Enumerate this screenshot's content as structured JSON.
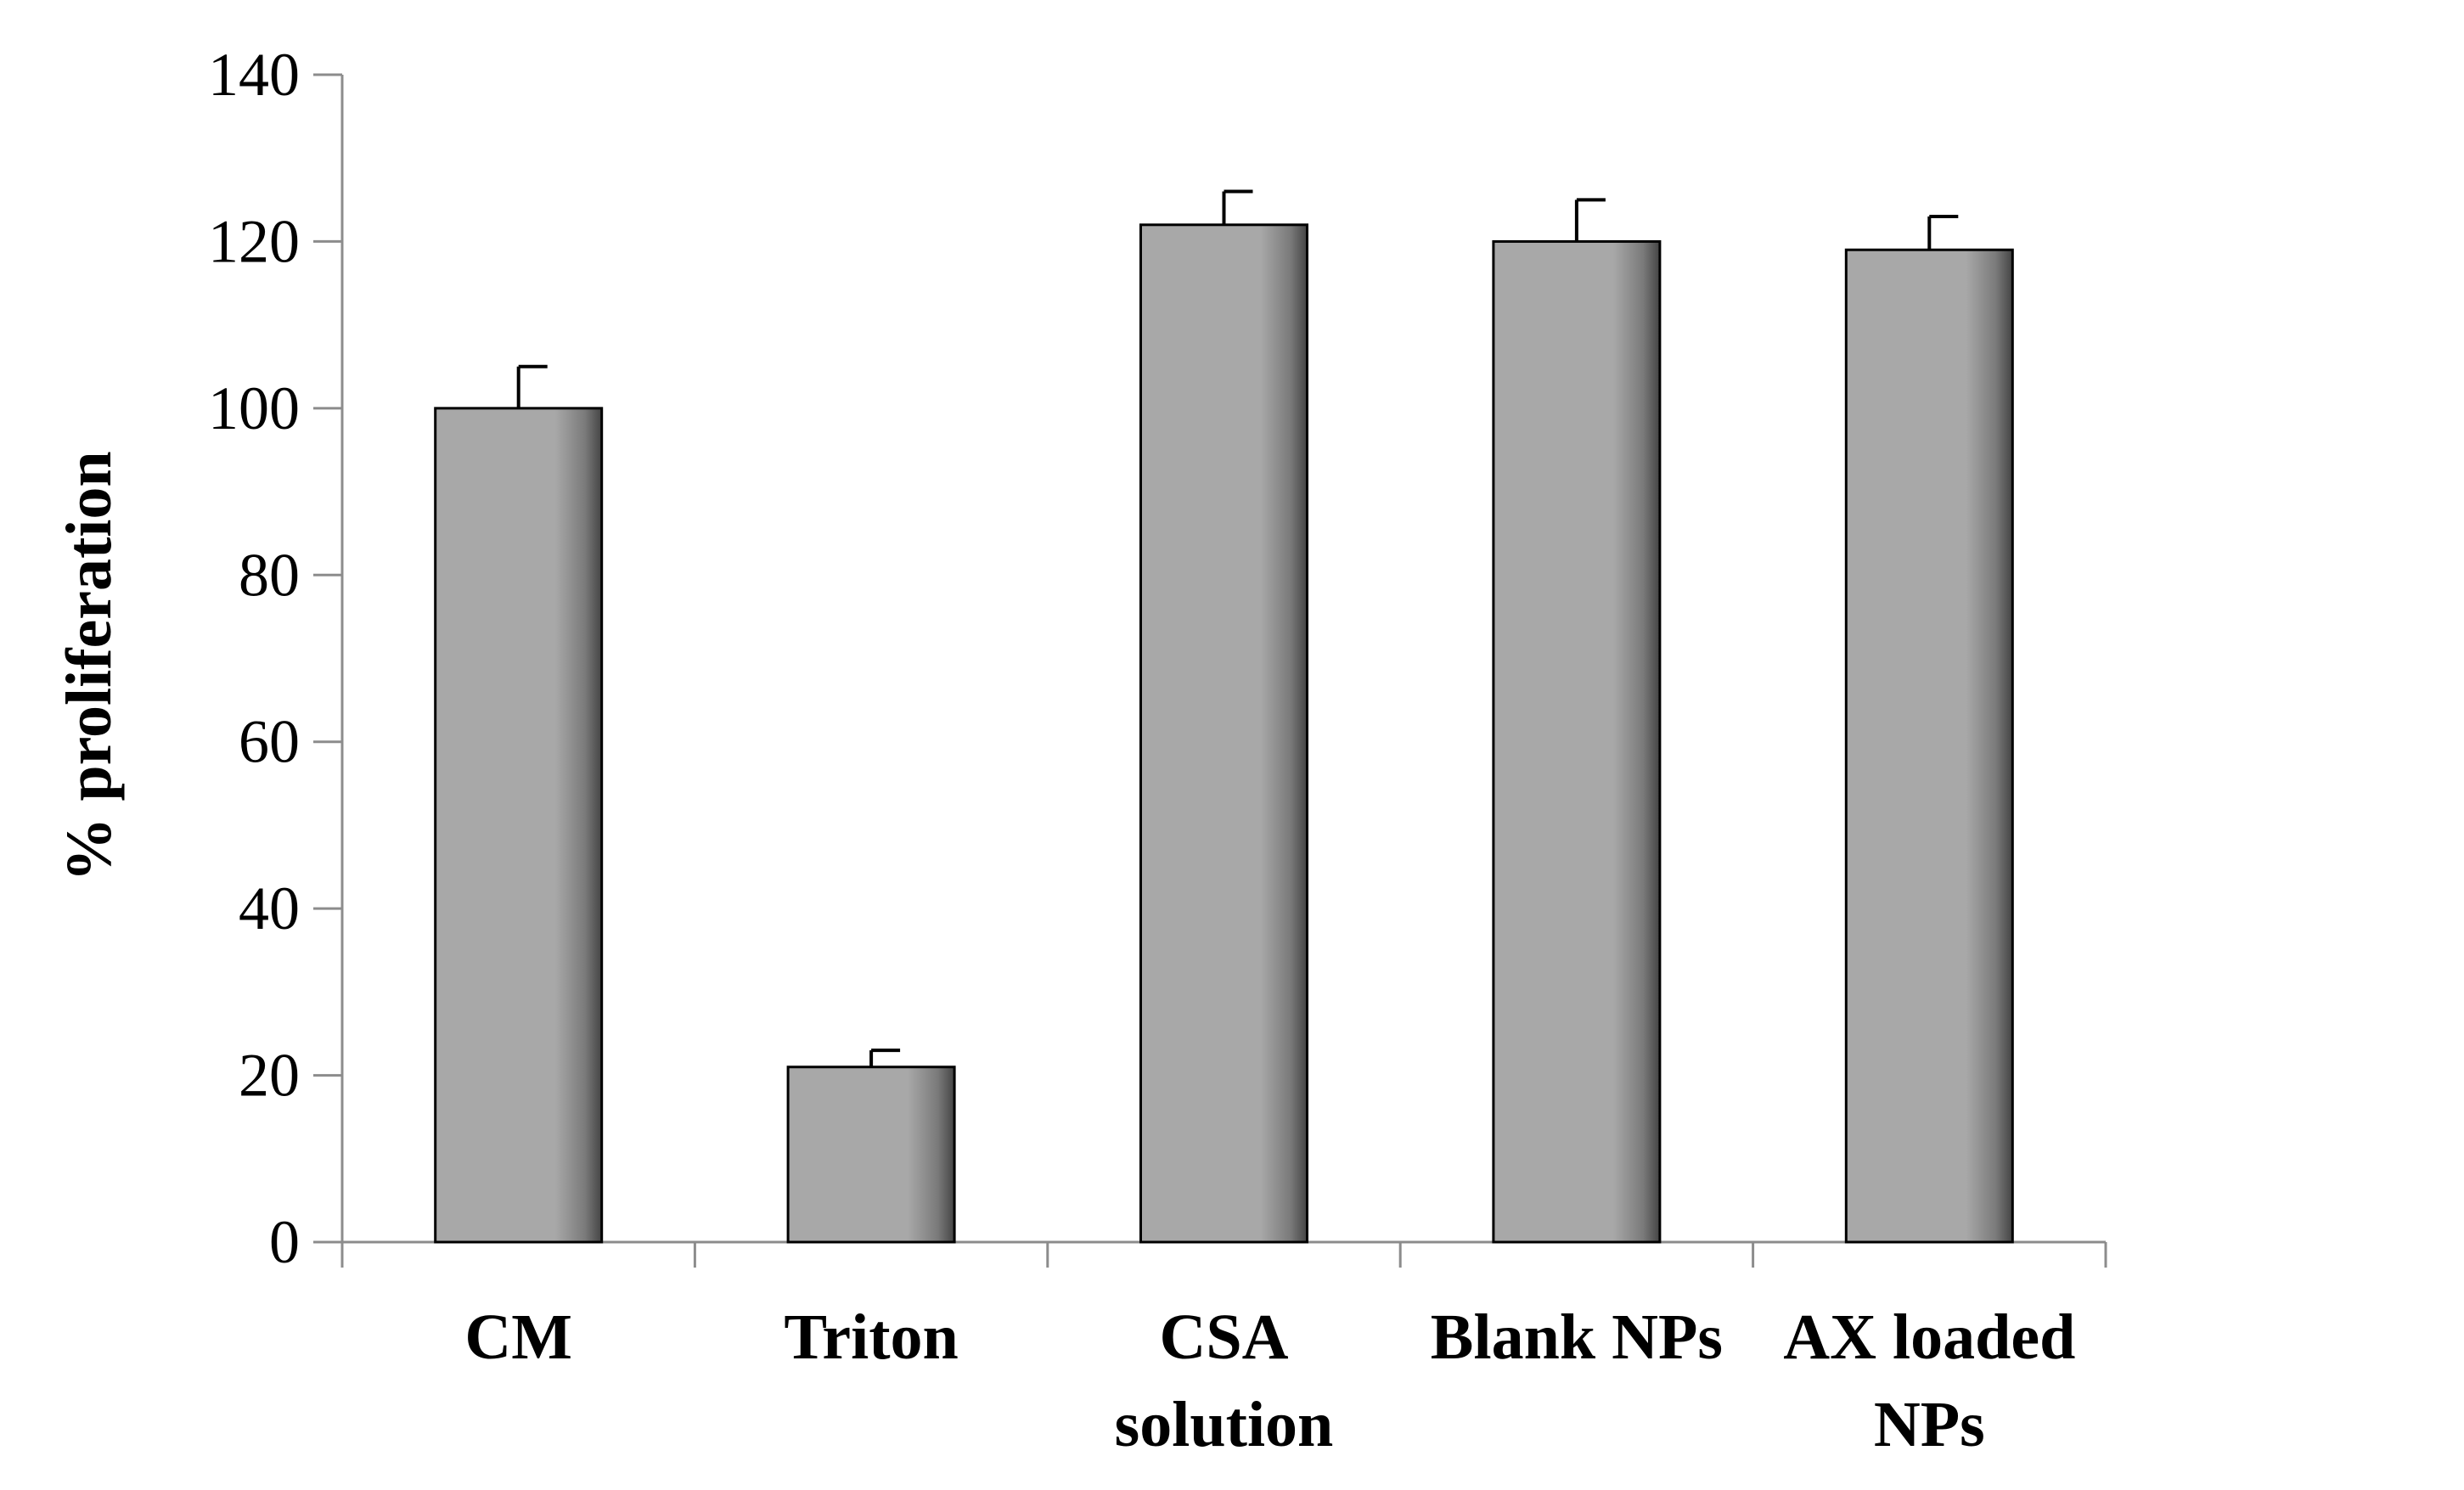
{
  "chart_data": {
    "type": "bar",
    "title": "",
    "xlabel": "",
    "ylabel": "% proliferation",
    "ylim": [
      0,
      140
    ],
    "yticks": [
      0,
      20,
      40,
      60,
      80,
      100,
      120,
      140
    ],
    "grid": false,
    "legend": "none",
    "categories": [
      [
        "CM"
      ],
      [
        "Triton"
      ],
      [
        "CSA",
        "solution"
      ],
      [
        "Blank NPs"
      ],
      [
        "AX loaded",
        "NPs"
      ]
    ],
    "series": [
      {
        "values": [
          100,
          21,
          122,
          120,
          119
        ],
        "errors": [
          5,
          2,
          4,
          5,
          4
        ]
      }
    ],
    "colors": {
      "bar_fill": "#a8a8a8",
      "bar_shade": "#4a4a4a",
      "bar_stroke": "#000000",
      "axis": "#8c8c8c"
    }
  }
}
